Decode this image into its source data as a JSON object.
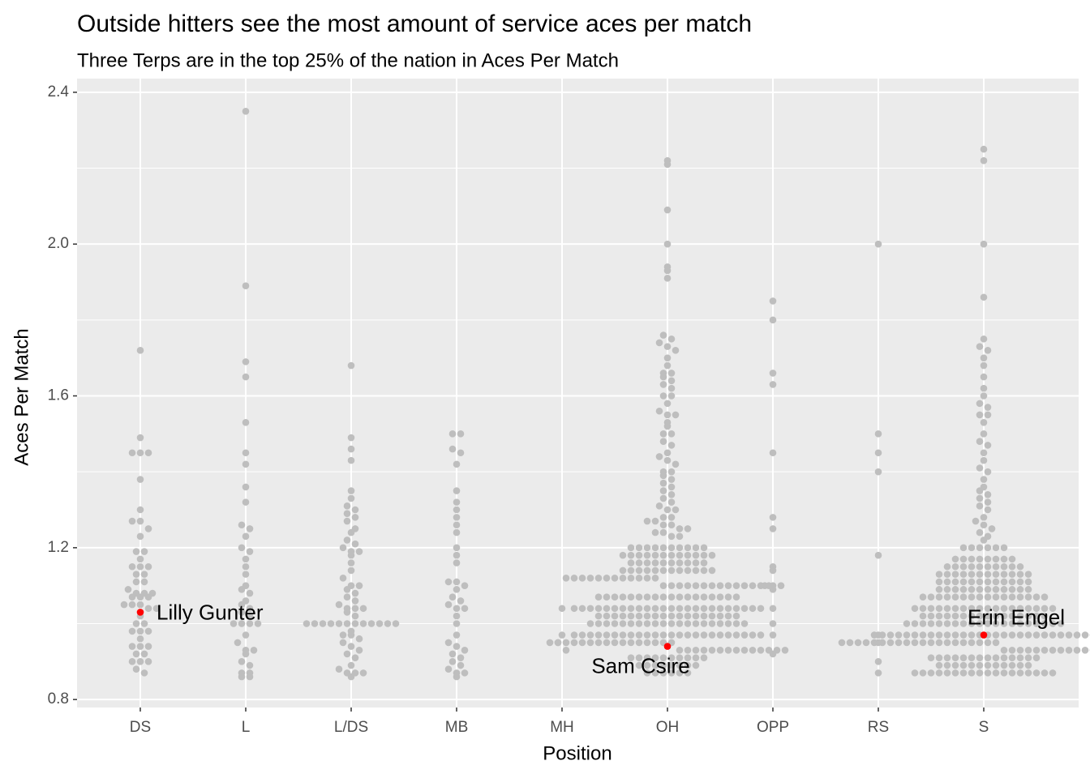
{
  "chart_data": {
    "type": "beeswarm",
    "title": "Outside hitters see the most amount of service aces per match",
    "subtitle": "Three Terps are in the top 25% of the nation in Aces Per Match",
    "x_label": "Position",
    "y_label": "Aces Per Match",
    "categories": [
      "DS",
      "L",
      "L/DS",
      "MB",
      "MH",
      "OH",
      "OPP",
      "RS",
      "S"
    ],
    "color": "#bebebe",
    "values": [
      [
        1.72,
        1.49,
        1.45,
        1.45,
        1.45,
        1.38,
        1.3,
        1.27,
        1.27,
        1.25,
        1.23,
        1.19,
        1.19,
        1.17,
        1.15,
        1.15,
        1.15,
        1.13,
        1.13,
        1.11,
        1.11,
        1.09,
        1.08,
        1.08,
        1.08,
        1.07,
        1.07,
        1.07,
        1.05,
        1.05,
        1.05,
        1.04,
        1.04,
        1.02,
        1.0,
        1.0,
        0.98,
        0.98,
        0.98,
        0.96,
        0.94,
        0.94,
        0.94,
        0.92,
        0.92,
        0.9,
        0.9,
        0.9,
        0.88,
        0.87
      ],
      [
        2.35,
        1.89,
        1.69,
        1.65,
        1.53,
        1.45,
        1.42,
        1.36,
        1.32,
        1.26,
        1.25,
        1.23,
        1.2,
        1.19,
        1.17,
        1.15,
        1.13,
        1.1,
        1.09,
        1.08,
        1.06,
        1.05,
        1.04,
        1.03,
        1.02,
        1.0,
        1.0,
        1.0,
        1.0,
        0.97,
        0.95,
        0.93,
        0.93,
        0.92,
        0.9,
        0.89,
        0.87,
        0.87,
        0.86,
        0.86
      ],
      [
        1.68,
        1.49,
        1.46,
        1.43,
        1.35,
        1.33,
        1.31,
        1.3,
        1.29,
        1.28,
        1.27,
        1.25,
        1.24,
        1.22,
        1.21,
        1.2,
        1.19,
        1.19,
        1.18,
        1.16,
        1.14,
        1.12,
        1.1,
        1.1,
        1.09,
        1.08,
        1.07,
        1.06,
        1.05,
        1.04,
        1.04,
        1.04,
        1.03,
        1.02,
        1.0,
        1.0,
        1.0,
        1.0,
        1.0,
        1.0,
        1.0,
        1.0,
        1.0,
        1.0,
        1.0,
        1.0,
        0.98,
        0.97,
        0.97,
        0.96,
        0.95,
        0.94,
        0.93,
        0.92,
        0.91,
        0.89,
        0.88,
        0.87,
        0.87,
        0.87,
        0.86
      ],
      [
        1.5,
        1.5,
        1.46,
        1.45,
        1.42,
        1.35,
        1.32,
        1.3,
        1.28,
        1.26,
        1.24,
        1.2,
        1.18,
        1.16,
        1.11,
        1.11,
        1.1,
        1.09,
        1.07,
        1.06,
        1.05,
        1.04,
        1.04,
        1.02,
        1.0,
        0.97,
        0.95,
        0.94,
        0.93,
        0.92,
        0.91,
        0.9,
        0.89,
        0.88,
        0.87,
        0.87,
        0.86
      ],
      [
        1.04,
        0.97,
        0.95,
        0.93
      ],
      [
        2.22,
        2.21,
        2.09,
        2.0,
        1.94,
        1.93,
        1.91,
        1.76,
        1.75,
        1.74,
        1.73,
        1.72,
        1.7,
        1.68,
        1.66,
        1.66,
        1.65,
        1.64,
        1.63,
        1.62,
        1.6,
        1.6,
        1.58,
        1.56,
        1.55,
        1.55,
        1.53,
        1.52,
        1.5,
        1.5,
        1.48,
        1.47,
        1.45,
        1.44,
        1.43,
        1.42,
        1.4,
        1.4,
        1.39,
        1.38,
        1.37,
        1.36,
        1.35,
        1.34,
        1.33,
        1.32,
        1.31,
        1.3,
        1.3,
        1.28,
        1.28,
        1.27,
        1.27,
        1.26,
        1.26,
        1.25,
        1.25,
        1.24,
        1.24,
        1.23,
        1.23,
        1.2,
        1.2,
        1.2,
        1.2,
        1.2,
        1.2,
        1.2,
        1.2,
        1.2,
        1.2,
        1.18,
        1.18,
        1.18,
        1.18,
        1.18,
        1.18,
        1.18,
        1.18,
        1.18,
        1.18,
        1.18,
        1.18,
        1.16,
        1.16,
        1.16,
        1.16,
        1.16,
        1.16,
        1.16,
        1.16,
        1.16,
        1.16,
        1.14,
        1.14,
        1.14,
        1.14,
        1.14,
        1.14,
        1.14,
        1.14,
        1.14,
        1.14,
        1.14,
        1.14,
        1.12,
        1.12,
        1.12,
        1.12,
        1.12,
        1.12,
        1.12,
        1.12,
        1.12,
        1.12,
        1.12,
        1.12,
        1.1,
        1.1,
        1.1,
        1.1,
        1.1,
        1.1,
        1.1,
        1.1,
        1.1,
        1.1,
        1.1,
        1.1,
        1.1,
        1.1,
        1.07,
        1.07,
        1.07,
        1.07,
        1.07,
        1.07,
        1.07,
        1.07,
        1.07,
        1.07,
        1.07,
        1.07,
        1.07,
        1.07,
        1.07,
        1.07,
        1.07,
        1.07,
        1.04,
        1.04,
        1.04,
        1.04,
        1.04,
        1.04,
        1.04,
        1.04,
        1.04,
        1.04,
        1.04,
        1.04,
        1.04,
        1.04,
        1.04,
        1.04,
        1.04,
        1.04,
        1.04,
        1.04,
        1.04,
        1.04,
        1.04,
        1.04,
        1.02,
        1.02,
        1.02,
        1.02,
        1.02,
        1.02,
        1.02,
        1.02,
        1.02,
        1.02,
        1.02,
        1.02,
        1.02,
        1.02,
        1.02,
        1.02,
        1.02,
        1.02,
        1.0,
        1.0,
        1.0,
        1.0,
        1.0,
        1.0,
        1.0,
        1.0,
        1.0,
        1.0,
        1.0,
        1.0,
        1.0,
        1.0,
        1.0,
        1.0,
        1.0,
        1.0,
        1.0,
        1.0,
        0.97,
        0.97,
        0.97,
        0.97,
        0.97,
        0.97,
        0.97,
        0.97,
        0.97,
        0.97,
        0.97,
        0.97,
        0.97,
        0.97,
        0.97,
        0.97,
        0.97,
        0.97,
        0.97,
        0.97,
        0.97,
        0.97,
        0.97,
        0.97,
        0.95,
        0.95,
        0.95,
        0.95,
        0.95,
        0.95,
        0.95,
        0.95,
        0.95,
        0.95,
        0.95,
        0.95,
        0.95,
        0.95,
        0.95,
        0.95,
        0.93,
        0.93,
        0.93,
        0.93,
        0.93,
        0.93,
        0.93,
        0.93,
        0.93,
        0.93,
        0.93,
        0.93,
        0.93,
        0.93,
        0.91,
        0.91,
        0.91,
        0.91,
        0.91,
        0.91,
        0.91,
        0.91,
        0.91,
        0.91,
        0.89,
        0.89,
        0.89,
        0.89,
        0.89,
        0.89,
        0.89,
        0.89,
        0.87,
        0.87,
        0.87,
        0.87,
        0.87,
        0.87
      ],
      [
        1.85,
        1.8,
        1.66,
        1.63,
        1.45,
        1.28,
        1.25,
        1.15,
        1.14,
        1.1,
        1.1,
        1.1,
        1.09,
        1.04,
        1.0,
        0.97,
        0.92
      ],
      [
        2.0,
        1.5,
        1.45,
        1.4,
        1.18,
        0.97,
        0.95,
        0.9,
        0.87
      ],
      [
        2.25,
        2.22,
        2.0,
        1.86,
        1.75,
        1.73,
        1.72,
        1.7,
        1.68,
        1.65,
        1.62,
        1.6,
        1.58,
        1.57,
        1.55,
        1.55,
        1.53,
        1.5,
        1.48,
        1.47,
        1.45,
        1.43,
        1.41,
        1.4,
        1.38,
        1.36,
        1.35,
        1.34,
        1.33,
        1.32,
        1.31,
        1.3,
        1.28,
        1.27,
        1.26,
        1.25,
        1.24,
        1.23,
        1.22,
        1.2,
        1.2,
        1.2,
        1.2,
        1.2,
        1.2,
        1.17,
        1.17,
        1.17,
        1.17,
        1.17,
        1.17,
        1.17,
        1.17,
        1.15,
        1.15,
        1.15,
        1.15,
        1.15,
        1.15,
        1.15,
        1.15,
        1.15,
        1.15,
        1.13,
        1.13,
        1.13,
        1.13,
        1.13,
        1.13,
        1.13,
        1.13,
        1.13,
        1.13,
        1.13,
        1.13,
        1.11,
        1.11,
        1.11,
        1.11,
        1.11,
        1.11,
        1.11,
        1.11,
        1.11,
        1.11,
        1.11,
        1.11,
        1.09,
        1.09,
        1.09,
        1.09,
        1.09,
        1.09,
        1.09,
        1.09,
        1.09,
        1.09,
        1.09,
        1.09,
        1.07,
        1.07,
        1.07,
        1.07,
        1.07,
        1.07,
        1.07,
        1.07,
        1.07,
        1.07,
        1.07,
        1.07,
        1.07,
        1.07,
        1.07,
        1.07,
        1.04,
        1.04,
        1.04,
        1.04,
        1.04,
        1.04,
        1.04,
        1.04,
        1.04,
        1.04,
        1.04,
        1.04,
        1.04,
        1.04,
        1.04,
        1.04,
        1.04,
        1.04,
        1.02,
        1.02,
        1.02,
        1.02,
        1.02,
        1.02,
        1.02,
        1.02,
        1.02,
        1.02,
        1.02,
        1.02,
        1.02,
        1.02,
        1.02,
        1.02,
        1.0,
        1.0,
        1.0,
        1.0,
        1.0,
        1.0,
        1.0,
        1.0,
        1.0,
        1.0,
        1.0,
        1.0,
        1.0,
        1.0,
        1.0,
        1.0,
        1.0,
        1.0,
        1.0,
        1.0,
        0.97,
        0.97,
        0.97,
        0.97,
        0.97,
        0.97,
        0.97,
        0.97,
        0.97,
        0.97,
        0.97,
        0.97,
        0.97,
        0.97,
        0.97,
        0.97,
        0.97,
        0.97,
        0.97,
        0.97,
        0.97,
        0.97,
        0.97,
        0.97,
        0.97,
        0.97,
        0.97,
        0.97,
        0.95,
        0.95,
        0.95,
        0.95,
        0.95,
        0.95,
        0.95,
        0.95,
        0.95,
        0.95,
        0.95,
        0.95,
        0.95,
        0.95,
        0.95,
        0.95,
        0.95,
        0.95,
        0.95,
        0.95,
        0.93,
        0.93,
        0.93,
        0.93,
        0.93,
        0.93,
        0.93,
        0.93,
        0.93,
        0.93,
        0.93,
        0.93,
        0.93,
        0.93,
        0.93,
        0.93,
        0.91,
        0.91,
        0.91,
        0.91,
        0.91,
        0.91,
        0.91,
        0.91,
        0.91,
        0.91,
        0.91,
        0.91,
        0.91,
        0.91,
        0.89,
        0.89,
        0.89,
        0.89,
        0.89,
        0.89,
        0.89,
        0.89,
        0.89,
        0.89,
        0.89,
        0.89,
        0.87,
        0.87,
        0.87,
        0.87,
        0.87,
        0.87,
        0.87,
        0.87,
        0.87,
        0.87,
        0.87,
        0.87,
        0.87,
        0.87,
        0.87,
        0.87,
        0.87,
        0.87
      ]
    ],
    "highlights": [
      {
        "category": "DS",
        "value": 1.03,
        "label": "Lilly Gunter"
      },
      {
        "category": "OH",
        "value": 0.94,
        "label": "Sam Csire"
      },
      {
        "category": "S",
        "value": 0.97,
        "label": "Erin Engel"
      }
    ],
    "highlight_color": "#ff0000",
    "ylim": [
      0.779,
      2.436
    ],
    "yticks": [
      {
        "value": 0.8,
        "label": "0.8"
      },
      {
        "value": 1.2,
        "label": "1.2"
      },
      {
        "value": 1.6,
        "label": "1.6"
      },
      {
        "value": 2.0,
        "label": "2.0"
      },
      {
        "value": 2.4,
        "label": "2.4"
      }
    ],
    "grid": true
  }
}
